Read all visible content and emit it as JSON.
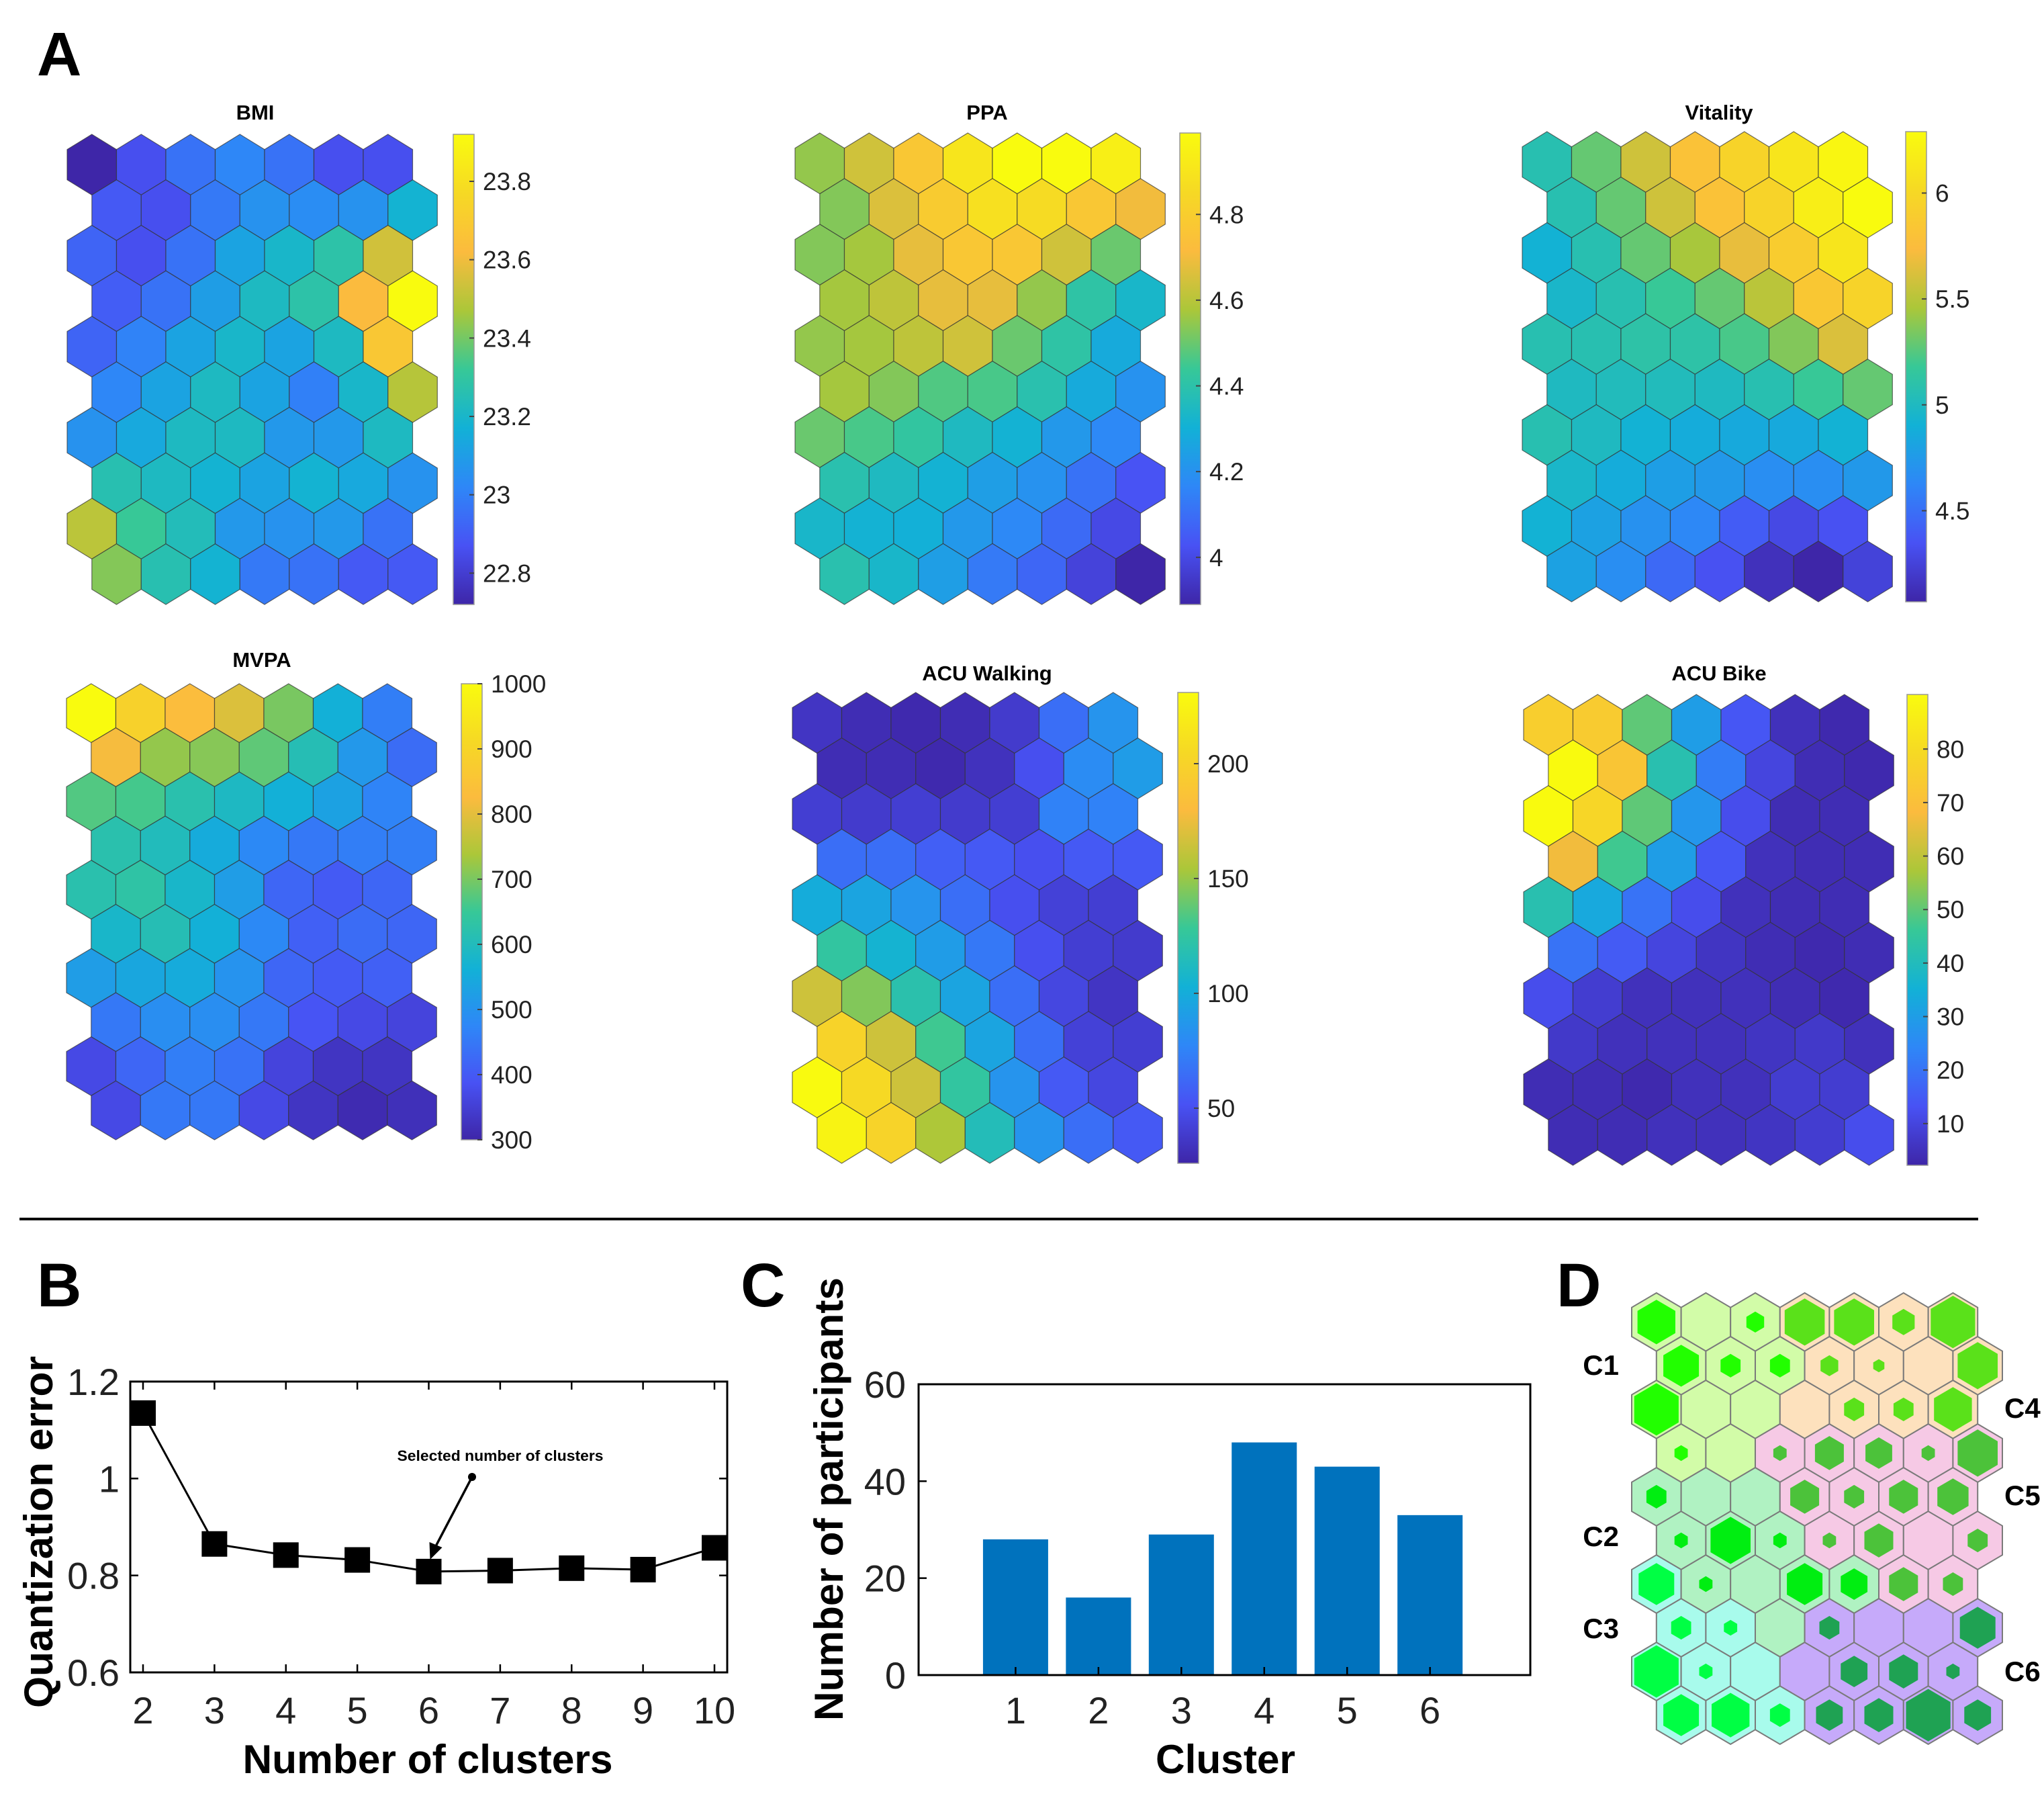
{
  "panel_labels": {
    "A": "A",
    "B": "B",
    "C": "C",
    "D": "D"
  },
  "chart_data": [
    {
      "type": "heatmap",
      "title": "BMI",
      "grid": {
        "cols": 7,
        "rows": 10,
        "shape": "hexagonal"
      },
      "clim": [
        22.72,
        23.92
      ],
      "colormap": "parula",
      "colorbar_ticks": [
        22.8,
        23,
        23.2,
        23.4,
        23.6,
        23.8
      ],
      "colorbar_tick_labels": [
        "22.8",
        "23",
        "23.2",
        "23.4",
        "23.6",
        "23.8"
      ],
      "values": [
        [
          22.72,
          22.86,
          22.96,
          23.02,
          22.96,
          22.86,
          22.86
        ],
        [
          22.89,
          22.86,
          22.98,
          23.06,
          23.04,
          23.06,
          23.18
        ],
        [
          22.92,
          22.86,
          22.96,
          23.12,
          23.2,
          23.28,
          23.54
        ],
        [
          22.9,
          22.96,
          23.1,
          23.22,
          23.28,
          23.62,
          23.92
        ],
        [
          22.92,
          23.01,
          23.12,
          23.2,
          23.12,
          23.22,
          23.68
        ],
        [
          23.02,
          23.12,
          23.22,
          23.12,
          23.0,
          23.2,
          23.49
        ],
        [
          23.06,
          23.14,
          23.22,
          23.22,
          23.08,
          23.08,
          23.22
        ],
        [
          23.26,
          23.22,
          23.18,
          23.12,
          23.18,
          23.14,
          23.06
        ],
        [
          23.5,
          23.32,
          23.24,
          23.08,
          23.06,
          23.08,
          22.96
        ],
        [
          23.42,
          23.26,
          23.18,
          22.98,
          22.96,
          22.89,
          22.89
        ]
      ]
    },
    {
      "type": "heatmap",
      "title": "PPA",
      "grid": {
        "cols": 7,
        "rows": 10,
        "shape": "hexagonal"
      },
      "clim": [
        3.89,
        4.99
      ],
      "colormap": "parula",
      "colorbar_ticks": [
        4,
        4.2,
        4.4,
        4.6,
        4.8
      ],
      "colorbar_tick_labels": [
        "4",
        "4.2",
        "4.4",
        "4.6",
        "4.8"
      ],
      "values": [
        [
          4.55,
          4.64,
          4.77,
          4.9,
          4.99,
          4.99,
          4.94
        ],
        [
          4.53,
          4.66,
          4.79,
          4.88,
          4.86,
          4.77,
          4.7
        ],
        [
          4.53,
          4.57,
          4.68,
          4.77,
          4.77,
          4.64,
          4.5
        ],
        [
          4.57,
          4.61,
          4.68,
          4.68,
          4.55,
          4.41,
          4.33
        ],
        [
          4.55,
          4.57,
          4.61,
          4.64,
          4.5,
          4.41,
          4.28
        ],
        [
          4.57,
          4.53,
          4.47,
          4.46,
          4.39,
          4.28,
          4.2
        ],
        [
          4.5,
          4.46,
          4.42,
          4.35,
          4.31,
          4.22,
          4.17
        ],
        [
          4.39,
          4.35,
          4.31,
          4.24,
          4.2,
          4.11,
          4.03
        ],
        [
          4.33,
          4.31,
          4.3,
          4.22,
          4.17,
          4.09,
          4.0
        ],
        [
          4.39,
          4.33,
          4.24,
          4.13,
          4.08,
          3.98,
          3.89
        ]
      ]
    },
    {
      "type": "heatmap",
      "title": "Vitality",
      "grid": {
        "cols": 7,
        "rows": 10,
        "shape": "hexagonal"
      },
      "clim": [
        4.07,
        6.29
      ],
      "colormap": "parula",
      "colorbar_ticks": [
        4.5,
        5,
        5.5,
        6
      ],
      "colorbar_tick_labels": [
        "4.5",
        "5",
        "5.5",
        "6"
      ],
      "values": [
        [
          5.07,
          5.29,
          5.58,
          5.8,
          5.96,
          6.11,
          6.25
        ],
        [
          5.07,
          5.29,
          5.58,
          5.8,
          5.96,
          6.18,
          6.29
        ],
        [
          4.91,
          5.07,
          5.29,
          5.45,
          5.67,
          5.89,
          6.11
        ],
        [
          4.96,
          5.07,
          5.18,
          5.29,
          5.51,
          5.85,
          5.96
        ],
        [
          5.07,
          5.07,
          5.11,
          5.11,
          5.22,
          5.36,
          5.62
        ],
        [
          5.0,
          5.02,
          5.02,
          5.0,
          5.07,
          5.18,
          5.29
        ],
        [
          5.07,
          5.0,
          4.91,
          4.87,
          4.85,
          4.85,
          4.91
        ],
        [
          4.96,
          4.87,
          4.78,
          4.74,
          4.67,
          4.67,
          4.74
        ],
        [
          4.91,
          4.8,
          4.69,
          4.63,
          4.4,
          4.29,
          4.34
        ],
        [
          4.8,
          4.67,
          4.47,
          4.34,
          4.14,
          4.07,
          4.25
        ]
      ]
    },
    {
      "type": "heatmap",
      "title": "MVPA",
      "grid": {
        "cols": 7,
        "rows": 10,
        "shape": "hexagonal"
      },
      "clim": [
        300,
        1000
      ],
      "colormap": "parula",
      "colorbar_ticks": [
        300,
        400,
        500,
        600,
        700,
        800,
        900,
        1000
      ],
      "colorbar_tick_labels": [
        "300",
        "400",
        "500",
        "600",
        "700",
        "800",
        "900",
        "1000"
      ],
      "values": [
        [
          1000,
          890,
          830,
          790,
          700,
          560,
          460
        ],
        [
          820,
          720,
          710,
          680,
          610,
          510,
          430
        ],
        [
          670,
          660,
          620,
          590,
          560,
          530,
          470
        ],
        [
          620,
          600,
          550,
          480,
          450,
          460,
          460
        ],
        [
          620,
          630,
          580,
          520,
          420,
          400,
          420
        ],
        [
          580,
          610,
          560,
          480,
          410,
          430,
          420
        ],
        [
          520,
          540,
          550,
          500,
          420,
          400,
          410
        ],
        [
          450,
          490,
          490,
          450,
          390,
          370,
          360
        ],
        [
          370,
          420,
          460,
          440,
          360,
          330,
          330
        ],
        [
          370,
          450,
          450,
          370,
          330,
          310,
          320
        ]
      ]
    },
    {
      "type": "heatmap",
      "title": "ACU Walking",
      "grid": {
        "cols": 7,
        "rows": 10,
        "shape": "hexagonal"
      },
      "clim": [
        26,
        231
      ],
      "colormap": "parula",
      "colorbar_ticks": [
        50,
        100,
        150,
        200
      ],
      "colorbar_tick_labels": [
        "50",
        "100",
        "150",
        "200"
      ],
      "values": [
        [
          35,
          30,
          28,
          30,
          38,
          65,
          85
        ],
        [
          30,
          30,
          28,
          33,
          50,
          80,
          90
        ],
        [
          40,
          38,
          40,
          38,
          40,
          75,
          75
        ],
        [
          65,
          65,
          58,
          55,
          50,
          55,
          55
        ],
        [
          100,
          95,
          85,
          65,
          50,
          42,
          40
        ],
        [
          125,
          105,
          90,
          70,
          50,
          40,
          38
        ],
        [
          165,
          145,
          120,
          95,
          65,
          45,
          35
        ],
        [
          200,
          165,
          130,
          95,
          65,
          42,
          40
        ],
        [
          230,
          205,
          165,
          125,
          85,
          55,
          45
        ],
        [
          225,
          200,
          155,
          115,
          85,
          65,
          55
        ]
      ]
    },
    {
      "type": "heatmap",
      "title": "ACU Bike",
      "grid": {
        "cols": 7,
        "rows": 10,
        "shape": "hexagonal"
      },
      "clim": [
        2.2,
        90.2
      ],
      "colormap": "parula",
      "colorbar_ticks": [
        10,
        20,
        30,
        40,
        50,
        60,
        70,
        80
      ],
      "colorbar_tick_labels": [
        "10",
        "20",
        "30",
        "40",
        "50",
        "60",
        "70",
        "80"
      ],
      "values": [
        [
          75,
          74,
          50,
          30,
          14,
          5,
          3
        ],
        [
          90,
          72,
          42,
          22,
          10,
          4,
          3
        ],
        [
          90,
          78,
          50,
          28,
          12,
          4,
          4
        ],
        [
          67,
          47,
          30,
          14,
          5,
          4,
          4
        ],
        [
          42,
          33,
          20,
          12,
          5,
          4,
          4
        ],
        [
          20,
          15,
          10,
          6,
          4,
          3,
          4
        ],
        [
          12,
          8,
          5,
          5,
          5,
          4,
          3
        ],
        [
          7,
          5,
          5,
          5,
          6,
          7,
          5
        ],
        [
          4,
          4,
          3,
          5,
          5,
          8,
          8
        ],
        [
          4,
          4,
          5,
          5,
          6,
          8,
          12
        ]
      ]
    },
    {
      "type": "line",
      "x": [
        2,
        3,
        4,
        5,
        6,
        7,
        8,
        9,
        10
      ],
      "y": [
        1.135,
        0.865,
        0.842,
        0.832,
        0.808,
        0.81,
        0.815,
        0.812,
        0.857
      ],
      "xlabel": "Number of clusters",
      "ylabel": "Quantization error",
      "xlim": [
        1.8,
        10.2
      ],
      "ylim": [
        0.6,
        1.2
      ],
      "xticks": [
        2,
        3,
        4,
        5,
        6,
        7,
        8,
        9,
        10
      ],
      "xtick_labels": [
        "2",
        "3",
        "4",
        "5",
        "6",
        "7",
        "8",
        "9",
        "10"
      ],
      "yticks": [
        0.6,
        0.8,
        1,
        1.2
      ],
      "ytick_labels": [
        "0.6",
        "0.8",
        "1",
        "1.2"
      ],
      "marker": "square",
      "color": "#000000",
      "annotation": {
        "text": "Selected number of clusters",
        "points_to_x": 6
      }
    },
    {
      "type": "bar",
      "categories": [
        "1",
        "2",
        "3",
        "4",
        "5",
        "6"
      ],
      "values": [
        28,
        16,
        29,
        48,
        43,
        33
      ],
      "xlabel": "Cluster",
      "ylabel": "Number of participants",
      "xlim": [
        -0.17,
        7.21
      ],
      "ylim": [
        0,
        60
      ],
      "yticks": [
        0,
        20,
        40,
        60
      ],
      "ytick_labels": [
        "0",
        "20",
        "40",
        "60"
      ],
      "color": "#0072bd"
    },
    {
      "type": "heatmap",
      "subtype": "cluster-map",
      "grid": {
        "cols": 7,
        "rows": 10,
        "shape": "hexagonal"
      },
      "cluster_labels": [
        "C1",
        "C2",
        "C3",
        "C4",
        "C5",
        "C6"
      ],
      "clusters": [
        [
          1,
          1,
          1,
          4,
          4,
          4,
          4
        ],
        [
          1,
          1,
          1,
          4,
          4,
          4,
          4
        ],
        [
          1,
          1,
          1,
          4,
          4,
          4,
          4
        ],
        [
          1,
          1,
          5,
          5,
          5,
          5,
          5
        ],
        [
          2,
          2,
          2,
          5,
          5,
          5,
          5
        ],
        [
          2,
          2,
          2,
          5,
          5,
          5,
          5
        ],
        [
          3,
          2,
          2,
          2,
          2,
          5,
          5
        ],
        [
          3,
          3,
          2,
          6,
          6,
          6,
          6
        ],
        [
          3,
          3,
          3,
          6,
          6,
          6,
          6
        ],
        [
          3,
          3,
          3,
          6,
          6,
          6,
          6
        ]
      ],
      "relative_hits": [
        [
          0.85,
          0,
          0.4,
          0.9,
          0.9,
          0.5,
          1
        ],
        [
          0.8,
          0.45,
          0.45,
          0.4,
          0.25,
          0,
          0.9
        ],
        [
          1,
          0,
          0,
          0,
          0.45,
          0.45,
          0.85
        ],
        [
          0.3,
          0,
          0.3,
          0.65,
          0.6,
          0.3,
          0.9
        ],
        [
          0.45,
          0,
          0,
          0.65,
          0.45,
          0.65,
          0.7
        ],
        [
          0.3,
          0.9,
          0.3,
          0.3,
          0.65,
          0,
          0.45
        ],
        [
          0.8,
          0.3,
          0,
          0.8,
          0.6,
          0.65,
          0.45
        ],
        [
          0.45,
          0.3,
          0,
          0.45,
          0,
          0,
          0.8
        ],
        [
          1,
          0.3,
          0,
          0,
          0.6,
          0.65,
          0.3
        ],
        [
          0.8,
          0.85,
          0.45,
          0.6,
          0.65,
          1,
          0.6
        ]
      ],
      "cluster_fill": [
        "#d2fca8",
        "#b0f2c2",
        "#a8fbec",
        "#fde1bd",
        "#f6c9e5",
        "#c6aafa"
      ],
      "hit_fill": [
        "#22ff00",
        "#00ee11",
        "#00ff44",
        "#5ae11a",
        "#4cc23a",
        "#1fa253"
      ]
    }
  ]
}
